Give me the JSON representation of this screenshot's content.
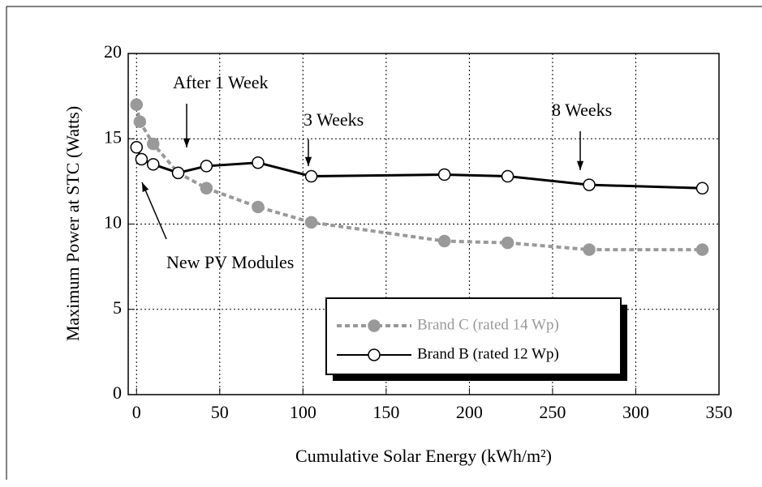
{
  "chart_data": {
    "type": "line",
    "xlabel": "Cumulative Solar Energy (kWh/m²)",
    "ylabel": "Maximum Power at STC (Watts)",
    "xlim": [
      -5,
      350
    ],
    "xticks": [
      0,
      50,
      100,
      150,
      200,
      250,
      300,
      350
    ],
    "ylim": [
      0,
      20
    ],
    "yticks": [
      0,
      5,
      10,
      15,
      20
    ],
    "grid": true,
    "legend": "lower right",
    "series": [
      {
        "name": "Brand C (rated 14 Wp)",
        "color": "#999999",
        "dash": true,
        "marker": "filled",
        "x": [
          0,
          2,
          10,
          25,
          42,
          73,
          105,
          185,
          223,
          272,
          340
        ],
        "values": [
          17,
          16,
          14.7,
          13,
          12.1,
          11,
          10.1,
          9,
          8.9,
          8.5,
          8.5
        ]
      },
      {
        "name": "Brand B (rated 12 Wp)",
        "color": "#000000",
        "dash": false,
        "marker": "open",
        "x": [
          0,
          3,
          10,
          25,
          42,
          73,
          105,
          185,
          223,
          272,
          340
        ],
        "values": [
          14.5,
          13.8,
          13.5,
          13,
          13.4,
          13.6,
          12.8,
          12.9,
          12.8,
          12.3,
          12.1
        ]
      }
    ],
    "annotations": [
      "After 1 Week",
      "3 Weeks",
      "8 Weeks",
      "New PV Modules"
    ]
  }
}
